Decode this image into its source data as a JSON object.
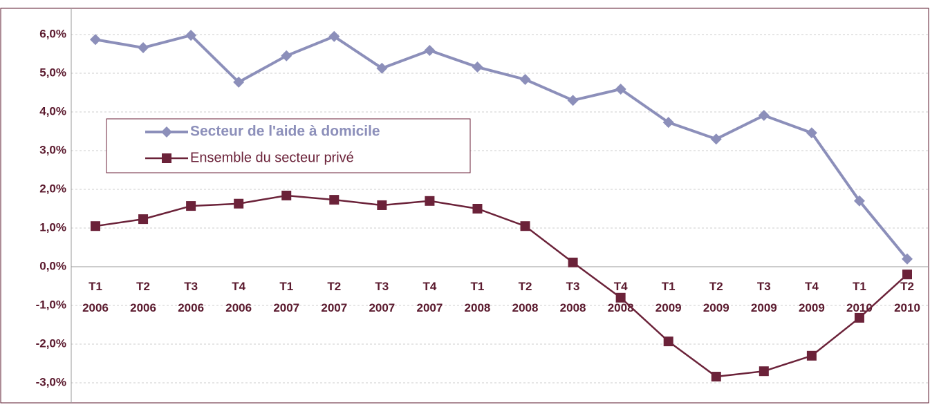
{
  "chart_data": {
    "type": "line",
    "categories": [
      "T1 2006",
      "T2 2006",
      "T3 2006",
      "T4 2006",
      "T1 2007",
      "T2 2007",
      "T3 2007",
      "T4 2007",
      "T1 2008",
      "T2 2008",
      "T3 2008",
      "T4 2008",
      "T1 2009",
      "T2 2009",
      "T3 2009",
      "T4 2009",
      "T1 2010",
      "T2 2010"
    ],
    "series": [
      {
        "name": "Secteur de l'aide à domicile",
        "color": "#8c8fba",
        "marker": "diamond",
        "values": [
          5.87,
          5.66,
          5.98,
          4.77,
          5.45,
          5.95,
          5.13,
          5.59,
          5.16,
          4.84,
          4.3,
          4.59,
          3.73,
          3.3,
          3.91,
          3.46,
          1.7,
          0.2
        ]
      },
      {
        "name": "Ensemble du secteur privé",
        "color": "#6b2239",
        "marker": "square",
        "values": [
          1.05,
          1.23,
          1.57,
          1.63,
          1.84,
          1.73,
          1.59,
          1.7,
          1.5,
          1.05,
          0.11,
          -0.8,
          -1.93,
          -2.84,
          -2.7,
          -2.3,
          -1.32,
          -0.2
        ]
      }
    ],
    "ylim": [
      -3,
      6
    ],
    "yticks": [
      {
        "value": -3,
        "label": "-3,0%"
      },
      {
        "value": -2,
        "label": "-2,0%"
      },
      {
        "value": -1,
        "label": "-1,0%"
      },
      {
        "value": 0,
        "label": "0,0%"
      },
      {
        "value": 1,
        "label": "1,0%"
      },
      {
        "value": 2,
        "label": "2,0%"
      },
      {
        "value": 3,
        "label": "3,0%"
      },
      {
        "value": 4,
        "label": "4,0%"
      },
      {
        "value": 5,
        "label": "5,0%"
      },
      {
        "value": 6,
        "label": "6,0%"
      }
    ],
    "grid": true,
    "legend_position": "upper left"
  }
}
